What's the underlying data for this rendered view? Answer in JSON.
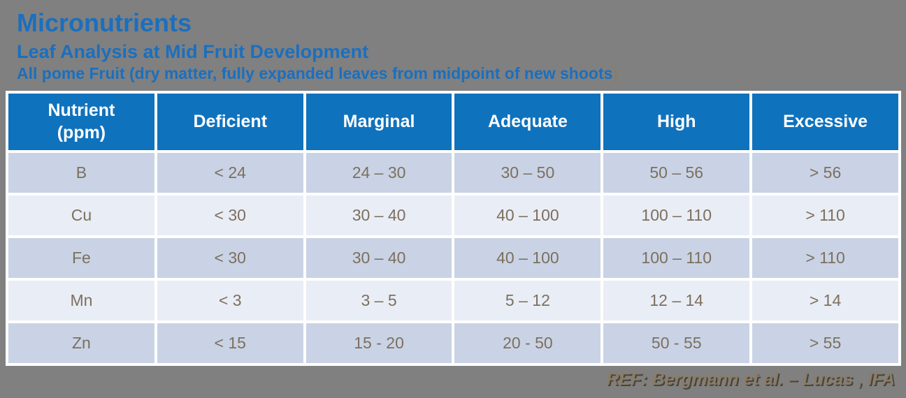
{
  "slide": {
    "background_color": "#808080",
    "title": "Micronutrients",
    "subtitle": "Leaf Analysis at Mid Fruit Development",
    "subtitle2_main": "All pome Fruit (dry matter, fully expanded leaves from midpoint of new shoots",
    "subtitle2_paren": ")",
    "reference": "REF: Bergmann et al. – Lucas , IFA"
  },
  "colors": {
    "title_blue": "#1B6FBE",
    "table_header_blue": "#0F72BD",
    "row_odd_bg": "#C9D3E5",
    "row_even_bg": "#E9EDF5",
    "body_text": "#7D6F5E",
    "accent_tan": "#8B7C66",
    "grid_white": "#FFFFFF"
  },
  "table": {
    "columns": [
      "Nutrient\n(ppm)",
      "Deficient",
      "Marginal",
      "Adequate",
      "High",
      "Excessive"
    ],
    "rows": [
      [
        "B",
        "< 24",
        "24 – 30",
        "30 – 50",
        "50 – 56",
        "> 56"
      ],
      [
        "Cu",
        "< 30",
        "30 – 40",
        "40 – 100",
        "100 – 110",
        "> 110"
      ],
      [
        "Fe",
        "< 30",
        "30 – 40",
        "40 – 100",
        "100 – 110",
        "> 110"
      ],
      [
        "Mn",
        "< 3",
        "3 – 5",
        "5 – 12",
        "12 – 14",
        "> 14"
      ],
      [
        "Zn",
        "< 15",
        "15 - 20",
        "20 - 50",
        "50 - 55",
        "> 55"
      ]
    ]
  }
}
